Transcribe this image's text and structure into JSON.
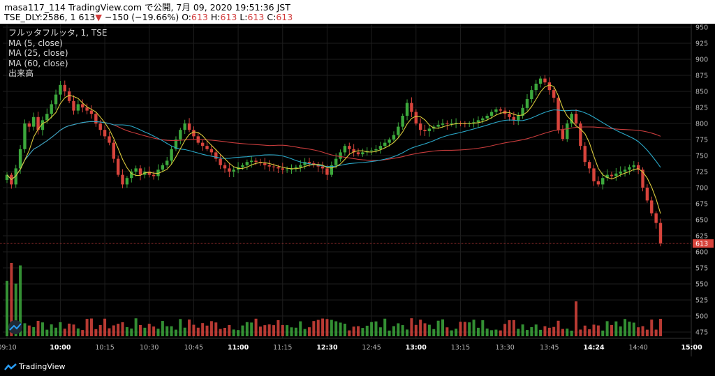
{
  "header": {
    "line1": "masa117_114 TradingView.com で公開, 7月 09, 2020 19:51:36 JST",
    "sym": "TSE_DLY:2586, 1",
    "last": "613",
    "arrow": "▼",
    "change": "−150 (−19.66%)",
    "o_label": "O:",
    "o": "613",
    "h_label": "H:",
    "h": "613",
    "l_label": "L:",
    "l": "613",
    "c_label": "C:",
    "c": "613"
  },
  "legend": {
    "symbol": "フルッタフルッタ, 1, TSE",
    "ma5": "MA (5, close)",
    "ma25": "MA (25, close)",
    "ma60": "MA (60, close)",
    "volume": "出来高"
  },
  "footer": {
    "brand": "TradingView"
  },
  "colors": {
    "up": "#3ca83c",
    "down": "#d8443c",
    "ma5": "#d8c83c",
    "ma25": "#2aa8c8",
    "ma60": "#c83c3c",
    "grid": "#1e1e1e"
  },
  "chart_data": {
    "type": "candlestick",
    "y_axis_ticks": [
      950,
      925,
      900,
      875,
      850,
      825,
      800,
      775,
      750,
      725,
      700,
      675,
      650,
      625,
      600,
      575,
      550,
      525,
      500,
      475
    ],
    "last_price_label": "613",
    "ylim": [
      460,
      955
    ],
    "x_tick_labels": [
      {
        "label": "09:10",
        "i": 0
      },
      {
        "label": "10:00",
        "i": 12
      },
      {
        "label": "10:15",
        "i": 22
      },
      {
        "label": "10:30",
        "i": 32
      },
      {
        "label": "10:45",
        "i": 42
      },
      {
        "label": "11:00",
        "i": 52
      },
      {
        "label": "11:15",
        "i": 62
      },
      {
        "label": "12:30",
        "i": 72
      },
      {
        "label": "12:45",
        "i": 82
      },
      {
        "label": "13:00",
        "i": 92
      },
      {
        "label": "13:15",
        "i": 102
      },
      {
        "label": "13:30",
        "i": 112
      },
      {
        "label": "13:45",
        "i": 122
      },
      {
        "label": "14:24",
        "i": 132
      },
      {
        "label": "14:40",
        "i": 142
      },
      {
        "label": "15:00",
        "i": 154
      }
    ],
    "bold_x_labels": [
      "10:00",
      "11:00",
      "12:30",
      "13:00",
      "14:24",
      "15:00"
    ],
    "closes": [
      720,
      705,
      730,
      760,
      800,
      795,
      810,
      790,
      805,
      815,
      830,
      845,
      860,
      850,
      835,
      820,
      830,
      825,
      820,
      815,
      800,
      790,
      780,
      770,
      745,
      720,
      705,
      715,
      725,
      730,
      720,
      725,
      720,
      718,
      728,
      735,
      742,
      760,
      775,
      790,
      800,
      790,
      780,
      770,
      765,
      760,
      755,
      745,
      735,
      730,
      725,
      728,
      732,
      735,
      740,
      742,
      740,
      738,
      735,
      733,
      732,
      730,
      728,
      728,
      730,
      732,
      735,
      740,
      738,
      735,
      733,
      730,
      720,
      735,
      745,
      755,
      765,
      760,
      755,
      752,
      755,
      757,
      758,
      760,
      765,
      770,
      775,
      782,
      795,
      812,
      832,
      818,
      800,
      790,
      788,
      792,
      795,
      798,
      800,
      799,
      800,
      801,
      800,
      799,
      800,
      802,
      805,
      808,
      812,
      818,
      822,
      820,
      815,
      810,
      805,
      812,
      824,
      838,
      852,
      862,
      870,
      864,
      852,
      840,
      790,
      776,
      800,
      815,
      800,
      765,
      740,
      730,
      710,
      705,
      715,
      720,
      718,
      722,
      725,
      728,
      732,
      735,
      728,
      700,
      680,
      660,
      645,
      613
    ],
    "series": [
      {
        "name": "MA (5, close)"
      },
      {
        "name": "MA (25, close)"
      },
      {
        "name": "MA (60, close)"
      },
      {
        "name": "出来高"
      }
    ]
  }
}
